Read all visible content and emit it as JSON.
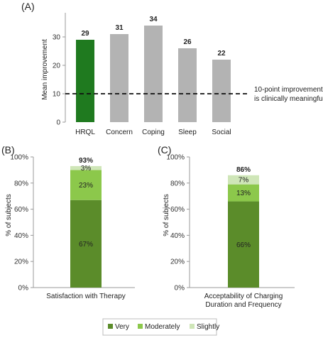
{
  "chart_data": [
    {
      "id": "A",
      "panel_label": "(A)",
      "type": "bar",
      "categories": [
        "HRQL",
        "Concern",
        "Coping",
        "Sleep",
        "Social"
      ],
      "values": [
        29,
        31,
        34,
        26,
        22
      ],
      "value_labels": [
        "29",
        "31",
        "34",
        "26",
        "22"
      ],
      "bar_colors": [
        "#1f7a1f",
        "#b3b3b3",
        "#b3b3b3",
        "#b3b3b3",
        "#b3b3b3"
      ],
      "ylabel": "Mean improvement",
      "ylim": [
        0,
        40
      ],
      "yticks": [
        "0",
        "10",
        "20",
        "30"
      ],
      "reference_line": {
        "y": 10,
        "style": "dashed",
        "annotation": [
          "10-point improvement",
          "is clinically meaningful"
        ]
      },
      "grid": false
    },
    {
      "id": "B",
      "panel_label": "(B)",
      "type": "bar",
      "stacked": true,
      "categories": [
        "Satisfaction with Therapy"
      ],
      "category_lines": [
        "Satisfaction with Therapy"
      ],
      "series": [
        {
          "name": "Very",
          "values": [
            67
          ],
          "label": "67%"
        },
        {
          "name": "Moderately",
          "values": [
            23
          ],
          "label": "23%"
        },
        {
          "name": "Slightly",
          "values": [
            3
          ],
          "label": "3%"
        }
      ],
      "total_label": "93%",
      "ylabel": "% of subjects",
      "ylim": [
        0,
        100
      ],
      "yticks": [
        "0%",
        "20%",
        "40%",
        "60%",
        "80%",
        "100%"
      ],
      "grid": false
    },
    {
      "id": "C",
      "panel_label": "(C)",
      "type": "bar",
      "stacked": true,
      "categories": [
        "Acceptability of Charging Duration and Frequency"
      ],
      "category_lines": [
        "Acceptability of Charging",
        "Duration and Frequency"
      ],
      "series": [
        {
          "name": "Very",
          "values": [
            66
          ],
          "label": "66%"
        },
        {
          "name": "Moderately",
          "values": [
            13
          ],
          "label": "13%"
        },
        {
          "name": "Slightly",
          "values": [
            7
          ],
          "label": "7%"
        }
      ],
      "total_label": "86%",
      "ylabel": "% of subjects",
      "ylim": [
        0,
        100
      ],
      "yticks": [
        "0%",
        "20%",
        "40%",
        "60%",
        "80%",
        "100%"
      ],
      "grid": false
    }
  ],
  "legend": {
    "placement": "bottom-center",
    "items": [
      {
        "name": "Very",
        "color": "#5b8c2a"
      },
      {
        "name": "Moderately",
        "color": "#8cc84b"
      },
      {
        "name": "Slightly",
        "color": "#cfe6b8"
      }
    ]
  }
}
